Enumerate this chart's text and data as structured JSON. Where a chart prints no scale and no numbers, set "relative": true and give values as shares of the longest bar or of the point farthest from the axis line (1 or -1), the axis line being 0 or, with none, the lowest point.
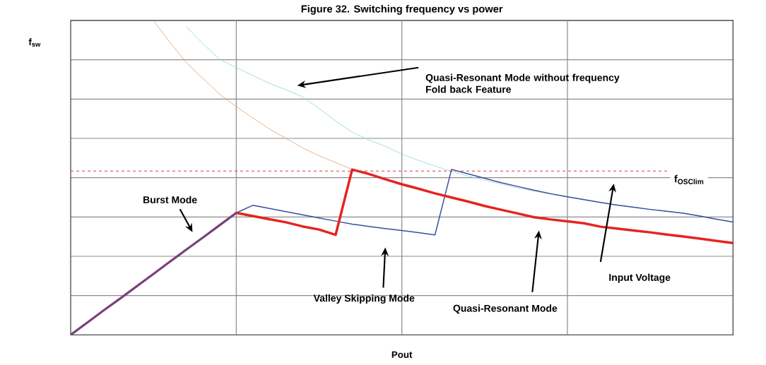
{
  "chart_data": {
    "type": "line",
    "title": "Figure 32. Switching frequency vs power",
    "xlabel": "Pout",
    "ylabel": "f$_{sw}$",
    "relative": true,
    "categories": [
      null,
      null,
      null,
      null,
      null,
      null,
      null,
      null,
      null,
      null,
      null,
      null,
      null,
      null,
      null,
      null,
      null,
      null,
      null,
      null,
      null,
      null,
      null,
      null,
      null,
      null,
      null,
      null,
      null,
      null,
      null,
      null,
      null,
      null,
      null,
      null,
      null,
      null,
      null,
      null,
      null
    ],
    "grid": true,
    "marker": "none",
    "series": [
      {
        "color": "#e0a070",
        "values": [
          null,
          null,
          null,
          null,
          null,
          1.0,
          0.93,
          0.865,
          0.815,
          0.765,
          0.726,
          0.69,
          0.655,
          0.625,
          0.595,
          0.57,
          0.548,
          0.526,
          null,
          null,
          null,
          null,
          null,
          null,
          null,
          null,
          null,
          null,
          null,
          null,
          null,
          null,
          null,
          null,
          null,
          null,
          null,
          null,
          null,
          null,
          null
        ]
      },
      {
        "color": "#8fd3de",
        "values": [
          null,
          null,
          null,
          null,
          null,
          null,
          null,
          0.98,
          0.925,
          0.876,
          0.85,
          0.825,
          0.8,
          0.78,
          0.757,
          0.72,
          0.68,
          0.645,
          0.62,
          0.6,
          0.575,
          0.555,
          0.537,
          0.52,
          0.505,
          0.492,
          0.48,
          0.468,
          0.457,
          0.447,
          0.439,
          0.43,
          0.421,
          0.413,
          0.406,
          0.399,
          0.393,
          0.387,
          0.378,
          0.368,
          0.359
        ]
      },
      {
        "color": "#3c4e9a",
        "values": [
          null,
          null,
          null,
          null,
          null,
          null,
          null,
          null,
          null,
          null,
          0.388,
          0.412,
          0.402,
          0.392,
          0.382,
          0.372,
          0.362,
          0.352,
          0.345,
          0.338,
          0.332,
          0.325,
          0.318,
          0.526,
          0.512,
          0.498,
          0.484,
          0.472,
          0.46,
          0.449,
          0.439,
          0.43,
          0.421,
          0.413,
          0.406,
          0.399,
          0.393,
          0.387,
          0.378,
          0.368,
          0.359
        ]
      },
      {
        "color": "#e52420",
        "values": [
          null,
          null,
          null,
          null,
          null,
          null,
          null,
          null,
          null,
          null,
          0.388,
          0.378,
          0.368,
          0.358,
          0.345,
          0.335,
          0.318,
          0.526,
          0.512,
          0.495,
          0.479,
          0.465,
          0.45,
          0.437,
          0.424,
          0.41,
          0.398,
          0.386,
          0.374,
          0.367,
          0.361,
          0.355,
          0.344,
          0.338,
          0.332,
          0.326,
          0.319,
          0.313,
          0.306,
          0.299,
          0.292
        ]
      },
      {
        "color": "#7a3f7e",
        "values": [
          0,
          0.039,
          0.078,
          0.116,
          0.155,
          0.194,
          0.233,
          0.272,
          0.31,
          0.349,
          0.388,
          null,
          null,
          null,
          null,
          null,
          null,
          null,
          null,
          null,
          null,
          null,
          null,
          null,
          null,
          null,
          null,
          null,
          null,
          null,
          null,
          null,
          null,
          null,
          null,
          null,
          null,
          null,
          null,
          null,
          null
        ]
      }
    ],
    "ref_lines": [
      {
        "axis": "y",
        "value": 0.521,
        "label": "f$_{OSClim}$",
        "color": "#d04040",
        "line_style": "dashed"
      }
    ],
    "annotations": [
      "Quasi-Resonant Mode without frequency Fold back Feature",
      "Burst Mode",
      "Valley Skipping Mode",
      "Quasi-Resonant Mode",
      "Input Voltage"
    ]
  }
}
